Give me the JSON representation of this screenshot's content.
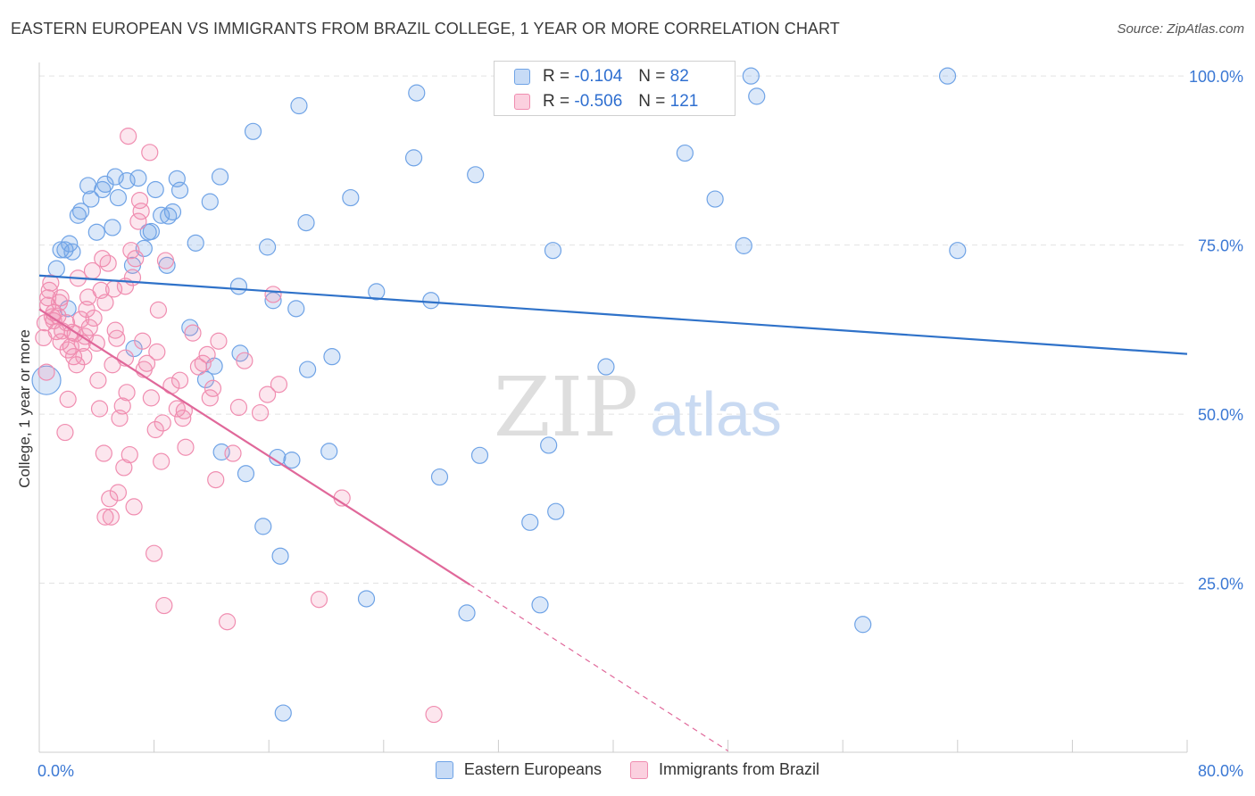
{
  "header": {
    "title": "EASTERN EUROPEAN VS IMMIGRANTS FROM BRAZIL COLLEGE, 1 YEAR OR MORE CORRELATION CHART",
    "source": "Source: ZipAtlas.com"
  },
  "watermark": {
    "zip": "ZIP",
    "atlas": "atlas"
  },
  "legend": {
    "rows": [
      {
        "r_label": "R =",
        "r_value": "-0.104",
        "n_label": "N =",
        "n_value": "82",
        "color": "#6fa3e6"
      },
      {
        "r_label": "R =",
        "r_value": "-0.506",
        "n_label": "N =",
        "n_value": "121",
        "color": "#f08db0"
      }
    ]
  },
  "chart_data": {
    "type": "scatter",
    "title": "EASTERN EUROPEAN VS IMMIGRANTS FROM BRAZIL COLLEGE, 1 YEAR OR MORE CORRELATION CHART",
    "xlabel": "",
    "ylabel": "College, 1 year or more",
    "xlim": [
      0,
      80
    ],
    "ylim": [
      0,
      102
    ],
    "x_tick_labels": [
      "0.0%",
      "80.0%"
    ],
    "y_ticks": [
      25,
      50,
      75,
      100
    ],
    "y_tick_labels": [
      "25.0%",
      "50.0%",
      "75.0%",
      "100.0%"
    ],
    "grid": true,
    "legend_position": "top-center",
    "series": [
      {
        "name": "Eastern Europeans",
        "color": "#6fa3e6",
        "line_color": "#2f72c9",
        "trend": {
          "x": [
            0,
            80
          ],
          "y": [
            70.5,
            58.9
          ]
        },
        "points": [
          [
            0.5,
            55.0
          ],
          [
            1.2,
            71.5
          ],
          [
            1.5,
            74.3
          ],
          [
            1.8,
            74.3
          ],
          [
            2.0,
            65.6
          ],
          [
            2.1,
            75.2
          ],
          [
            2.3,
            74.0
          ],
          [
            2.7,
            79.4
          ],
          [
            2.9,
            80.0
          ],
          [
            3.4,
            83.8
          ],
          [
            3.6,
            81.8
          ],
          [
            4.0,
            76.9
          ],
          [
            4.4,
            83.2
          ],
          [
            4.6,
            84.0
          ],
          [
            5.1,
            77.6
          ],
          [
            5.3,
            85.1
          ],
          [
            5.5,
            82.0
          ],
          [
            6.1,
            84.5
          ],
          [
            6.5,
            72.0
          ],
          [
            6.6,
            59.7
          ],
          [
            6.9,
            84.9
          ],
          [
            7.3,
            74.5
          ],
          [
            7.6,
            76.9
          ],
          [
            7.8,
            77.0
          ],
          [
            8.1,
            83.2
          ],
          [
            8.5,
            79.4
          ],
          [
            8.9,
            72.0
          ],
          [
            9.0,
            79.3
          ],
          [
            9.3,
            79.9
          ],
          [
            9.6,
            84.8
          ],
          [
            9.8,
            83.1
          ],
          [
            10.5,
            62.8
          ],
          [
            10.9,
            75.3
          ],
          [
            11.6,
            55.1
          ],
          [
            11.9,
            81.4
          ],
          [
            12.2,
            57.1
          ],
          [
            12.6,
            85.1
          ],
          [
            12.7,
            44.4
          ],
          [
            13.9,
            68.9
          ],
          [
            14.0,
            59.0
          ],
          [
            14.4,
            41.2
          ],
          [
            14.9,
            91.8
          ],
          [
            15.6,
            33.4
          ],
          [
            15.9,
            74.7
          ],
          [
            16.3,
            66.8
          ],
          [
            16.6,
            43.6
          ],
          [
            16.8,
            29.0
          ],
          [
            17.0,
            5.8
          ],
          [
            17.6,
            43.2
          ],
          [
            17.9,
            65.6
          ],
          [
            18.1,
            95.6
          ],
          [
            18.6,
            78.3
          ],
          [
            18.7,
            56.6
          ],
          [
            20.2,
            44.5
          ],
          [
            20.4,
            58.5
          ],
          [
            21.7,
            82.0
          ],
          [
            22.8,
            22.7
          ],
          [
            23.5,
            68.1
          ],
          [
            26.1,
            87.9
          ],
          [
            26.3,
            97.5
          ],
          [
            27.3,
            66.8
          ],
          [
            27.9,
            40.7
          ],
          [
            29.8,
            20.6
          ],
          [
            30.4,
            85.4
          ],
          [
            30.7,
            43.9
          ],
          [
            34.2,
            34.0
          ],
          [
            34.9,
            21.8
          ],
          [
            35.5,
            45.4
          ],
          [
            35.8,
            74.2
          ],
          [
            36.0,
            35.6
          ],
          [
            39.5,
            57.0
          ],
          [
            45.0,
            88.6
          ],
          [
            47.1,
            81.8
          ],
          [
            49.1,
            74.9
          ],
          [
            49.6,
            100.0
          ],
          [
            50.0,
            97.0
          ],
          [
            57.4,
            18.9
          ],
          [
            63.3,
            100.0
          ],
          [
            64.0,
            74.2
          ]
        ]
      },
      {
        "name": "Immigrants from Brazil",
        "color": "#f08db0",
        "line_color": "#e0689a",
        "trend": {
          "x": [
            0,
            30
          ],
          "y": [
            65.5,
            24.8
          ]
        },
        "trend_dashed": {
          "x": [
            30,
            48
          ],
          "y": [
            24.8,
            0.2
          ]
        },
        "points": [
          [
            0.3,
            61.3
          ],
          [
            0.4,
            63.5
          ],
          [
            0.5,
            56.2
          ],
          [
            0.6,
            66.1
          ],
          [
            0.6,
            67.2
          ],
          [
            0.7,
            68.3
          ],
          [
            0.8,
            69.4
          ],
          [
            0.9,
            64.4
          ],
          [
            1.0,
            63.8
          ],
          [
            1.0,
            65.0
          ],
          [
            1.2,
            62.2
          ],
          [
            1.3,
            64.5
          ],
          [
            1.4,
            66.5
          ],
          [
            1.5,
            67.2
          ],
          [
            1.5,
            60.7
          ],
          [
            1.6,
            62.3
          ],
          [
            1.8,
            47.3
          ],
          [
            1.9,
            63.5
          ],
          [
            2.0,
            59.5
          ],
          [
            2.0,
            52.2
          ],
          [
            2.2,
            60.0
          ],
          [
            2.3,
            62.1
          ],
          [
            2.4,
            58.5
          ],
          [
            2.5,
            61.9
          ],
          [
            2.6,
            57.3
          ],
          [
            2.7,
            70.1
          ],
          [
            2.9,
            64.0
          ],
          [
            3.0,
            60.5
          ],
          [
            3.1,
            58.5
          ],
          [
            3.2,
            61.5
          ],
          [
            3.3,
            65.5
          ],
          [
            3.4,
            67.3
          ],
          [
            3.5,
            62.8
          ],
          [
            3.7,
            71.2
          ],
          [
            3.8,
            64.2
          ],
          [
            4.0,
            60.5
          ],
          [
            4.1,
            55.0
          ],
          [
            4.2,
            50.8
          ],
          [
            4.3,
            68.3
          ],
          [
            4.4,
            73.0
          ],
          [
            4.5,
            44.2
          ],
          [
            4.6,
            34.8
          ],
          [
            4.6,
            66.5
          ],
          [
            4.8,
            72.3
          ],
          [
            4.9,
            37.5
          ],
          [
            5.0,
            34.8
          ],
          [
            5.1,
            57.3
          ],
          [
            5.2,
            68.5
          ],
          [
            5.3,
            62.4
          ],
          [
            5.4,
            61.2
          ],
          [
            5.5,
            38.4
          ],
          [
            5.6,
            49.4
          ],
          [
            5.8,
            51.2
          ],
          [
            5.9,
            42.1
          ],
          [
            6.0,
            58.3
          ],
          [
            6.0,
            68.9
          ],
          [
            6.1,
            53.2
          ],
          [
            6.2,
            91.1
          ],
          [
            6.3,
            44.0
          ],
          [
            6.4,
            74.2
          ],
          [
            6.5,
            70.2
          ],
          [
            6.6,
            36.3
          ],
          [
            6.7,
            73.0
          ],
          [
            6.9,
            78.5
          ],
          [
            7.0,
            81.6
          ],
          [
            7.1,
            80.0
          ],
          [
            7.2,
            60.8
          ],
          [
            7.3,
            56.6
          ],
          [
            7.5,
            57.5
          ],
          [
            7.7,
            88.7
          ],
          [
            7.8,
            52.4
          ],
          [
            8.0,
            29.4
          ],
          [
            8.1,
            47.7
          ],
          [
            8.2,
            59.2
          ],
          [
            8.3,
            65.4
          ],
          [
            8.5,
            43.0
          ],
          [
            8.6,
            48.7
          ],
          [
            8.7,
            21.7
          ],
          [
            8.8,
            72.7
          ],
          [
            9.2,
            54.2
          ],
          [
            9.6,
            50.8
          ],
          [
            9.8,
            55.0
          ],
          [
            10.0,
            49.4
          ],
          [
            10.1,
            50.5
          ],
          [
            10.2,
            45.1
          ],
          [
            10.7,
            62.0
          ],
          [
            11.1,
            57.0
          ],
          [
            11.4,
            57.5
          ],
          [
            11.7,
            58.8
          ],
          [
            11.9,
            52.4
          ],
          [
            12.1,
            53.8
          ],
          [
            12.3,
            40.3
          ],
          [
            12.5,
            60.8
          ],
          [
            13.1,
            19.3
          ],
          [
            13.5,
            44.2
          ],
          [
            13.9,
            51.0
          ],
          [
            14.3,
            57.9
          ],
          [
            15.4,
            50.2
          ],
          [
            15.9,
            52.9
          ],
          [
            16.3,
            67.7
          ],
          [
            16.7,
            54.4
          ],
          [
            19.5,
            22.6
          ],
          [
            21.1,
            37.6
          ],
          [
            27.5,
            5.6
          ]
        ]
      }
    ]
  },
  "bottom_legend": {
    "items": [
      {
        "label": "Eastern Europeans",
        "color": "#6fa3e6"
      },
      {
        "label": "Immigrants from Brazil",
        "color": "#f08db0"
      }
    ]
  }
}
